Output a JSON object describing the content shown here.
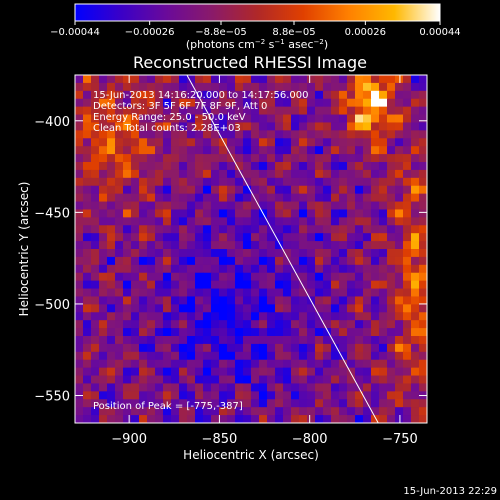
{
  "chart_data": {
    "type": "heatmap",
    "title": "Reconstructed RHESSI Image",
    "xlabel": "Heliocentric X (arcsec)",
    "ylabel": "Heliocentric Y (arcsec)",
    "xlim": [
      -930,
      -735
    ],
    "ylim": [
      -565,
      -375
    ],
    "x_ticks": [
      -900,
      -850,
      -800,
      -750
    ],
    "y_ticks": [
      -400,
      -450,
      -500,
      -550
    ],
    "x_tick_labels": [
      "−900",
      "−850",
      "−800",
      "−750"
    ],
    "y_tick_labels": [
      "−400",
      "−450",
      "−500",
      "−550"
    ],
    "colorbar": {
      "min": -0.00044,
      "max": 0.00044,
      "ticks": [
        -0.00044,
        -0.00026,
        -8.8e-05,
        8.8e-05,
        0.00026,
        0.00044
      ],
      "tick_labels": [
        "−0.00044",
        "−0.00026",
        "−8.8e−05",
        "8.8e−05",
        "0.00026",
        "0.00044"
      ],
      "unit_prefix": "(photons cm",
      "unit_sup1": "−2",
      "unit_mid1": " s",
      "unit_sup2": "−1",
      "unit_mid2": " asec",
      "unit_sup3": "−2",
      "unit_suffix": ")",
      "colors": [
        "#0000ff",
        "#3a00c8",
        "#6a0a9a",
        "#8a1a6a",
        "#b02828",
        "#e04000",
        "#ff8000",
        "#ffb800",
        "#ffffff"
      ]
    },
    "limb_line": {
      "x": [
        -868,
        -762
      ],
      "y": [
        -375,
        -565
      ]
    },
    "peak": {
      "x": -775,
      "y": -387
    }
  },
  "annotations": {
    "time_range": "15-Jun-2013 14:16:20.000 to 14:17:56.000",
    "detectors": "Detectors: 3F 5F 6F 7F 8F 9F, Att 0",
    "energy": "Energy Range: 25.0 - 50.0 keV",
    "clean": "Clean    Total counts: 2.28E+03",
    "peak_text": "Position of Peak = [-775,-387]"
  },
  "footer": {
    "timestamp": "15-Jun-2013 22:29"
  }
}
